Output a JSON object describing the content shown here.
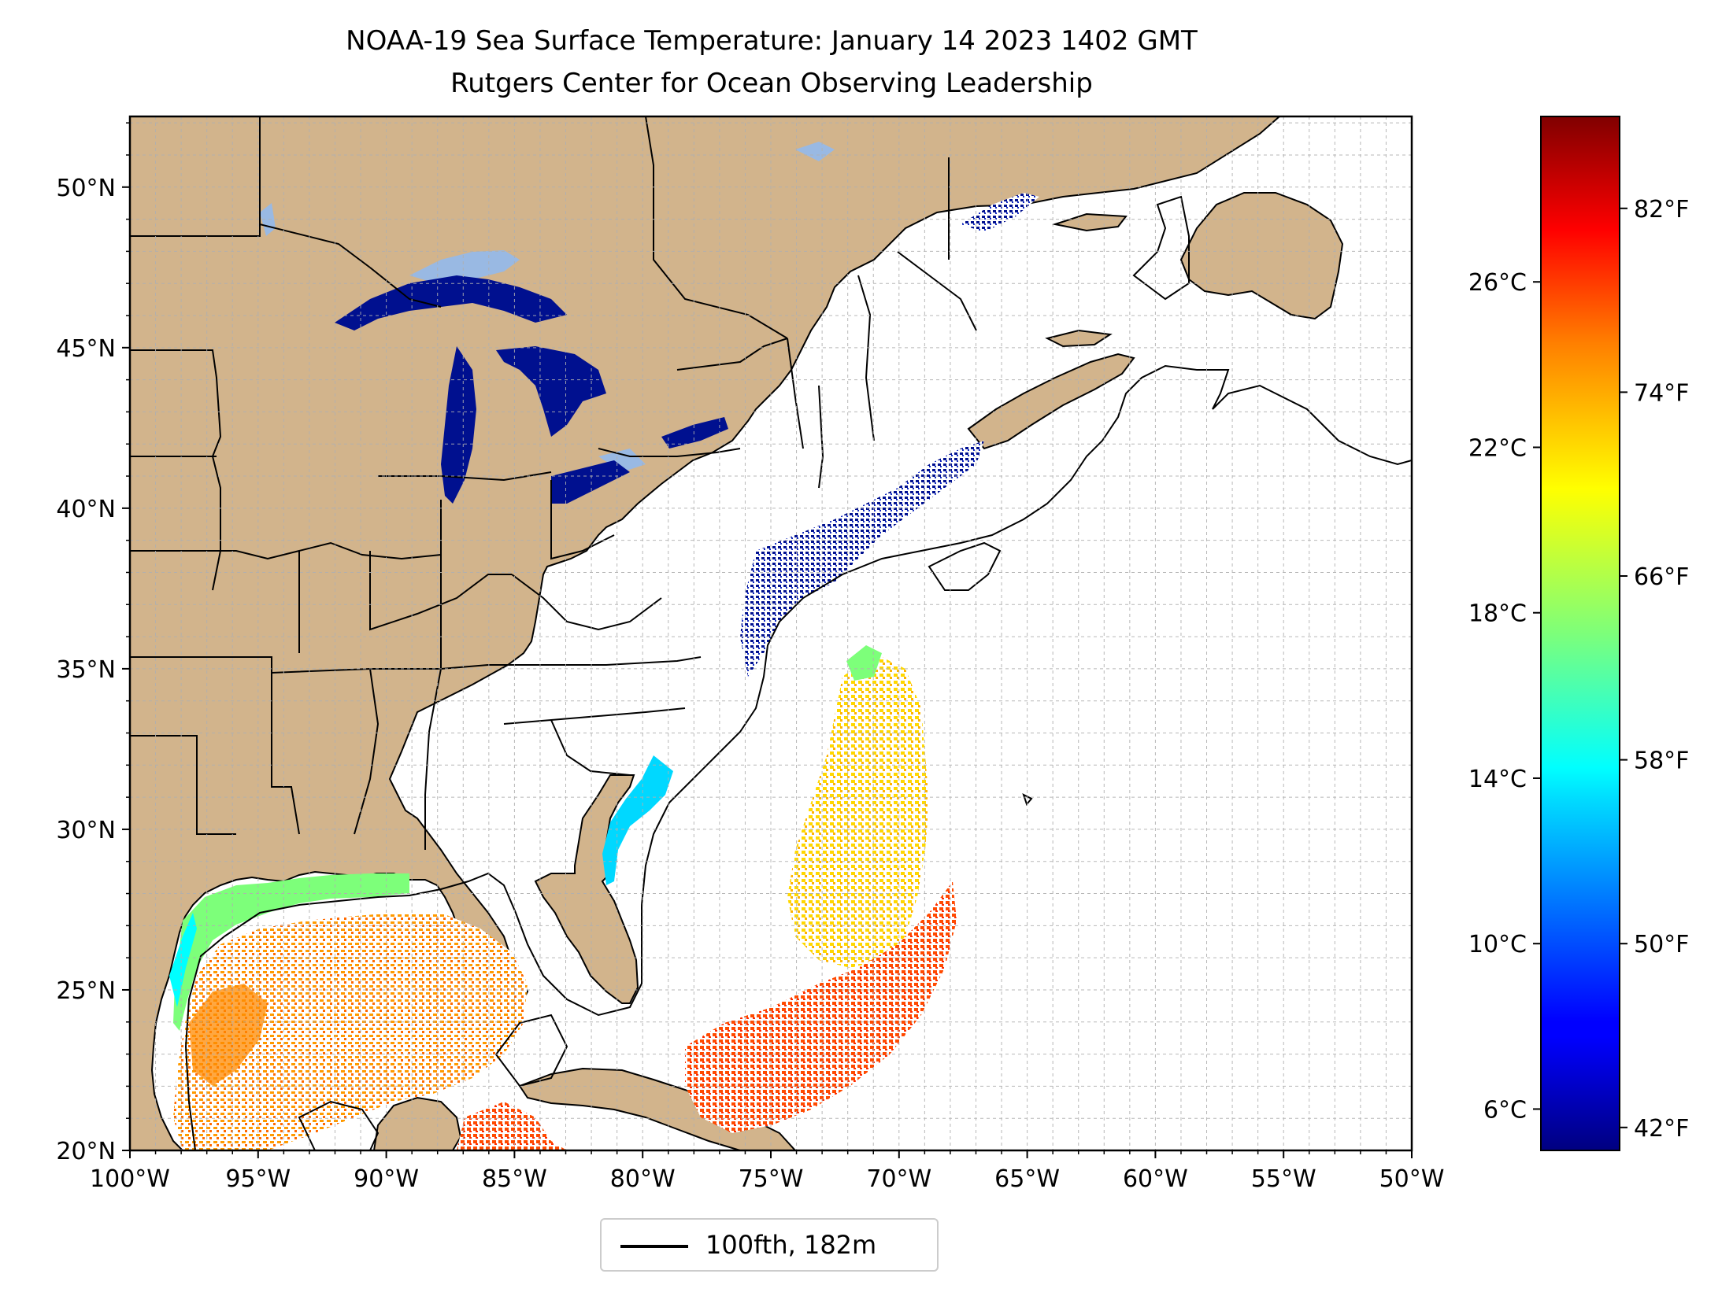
{
  "title": {
    "line1": "NOAA-19 Sea Surface Temperature: January 14 2023 1402 GMT",
    "line2": "Rutgers Center for Ocean Observing Leadership"
  },
  "map": {
    "projection": "plate-carree",
    "lon_range": [
      -100,
      -50
    ],
    "lat_range": [
      20,
      52.2
    ],
    "grid": "dashed, 1 degree",
    "land_color": "#d2b48c",
    "lake_no_data_color": "#99b9e3",
    "ocean_no_data_color": "#ffffff",
    "x_tick_labels": [
      "100°W",
      "95°W",
      "90°W",
      "85°W",
      "80°W",
      "75°W",
      "70°W",
      "65°W",
      "60°W",
      "55°W",
      "50°W"
    ],
    "y_tick_labels": [
      "20°N",
      "25°N",
      "30°N",
      "35°N",
      "40°N",
      "45°N",
      "50°N"
    ],
    "sst_field_by_region": [
      {
        "region": "Great Lakes",
        "color_value": "41°F"
      },
      {
        "region": "Gulf of Maine / Nova Scotia / Mid-Atlantic shelf",
        "color_value": "42-45°F"
      },
      {
        "region": "Carolina / Georgia nearshore",
        "color_value": "56-60°F"
      },
      {
        "region": "Northern Gulf of Mexico nearshore",
        "color_value": "60-66°F"
      },
      {
        "region": "Gulf of Mexico interior",
        "color_value": "72-78°F"
      },
      {
        "region": "Sargasso Sea east of Gulf Stream",
        "color_value": "70-74°F"
      },
      {
        "region": "Bahamas / Caribbean",
        "color_value": "77-80°F"
      }
    ]
  },
  "colorbar": {
    "colormap": "jet",
    "celsius_range": [
      5.0,
      30.0
    ],
    "celsius_ticks": [
      "6°C",
      "10°C",
      "14°C",
      "18°C",
      "22°C",
      "26°C"
    ],
    "fahrenheit_ticks": [
      "42°F",
      "50°F",
      "58°F",
      "66°F",
      "74°F",
      "82°F"
    ]
  },
  "legend": {
    "label": "100fth, 182m",
    "line_color": "#000000"
  }
}
